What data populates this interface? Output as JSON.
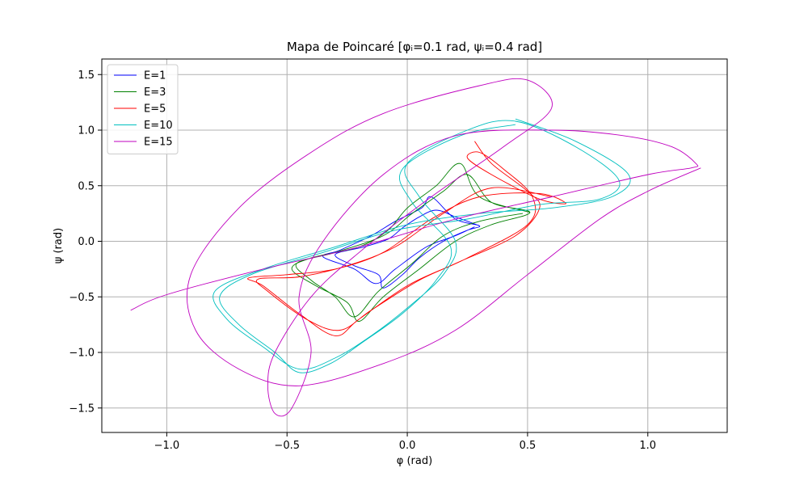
{
  "chart_data": {
    "type": "line",
    "title": "Mapa de Poincaré [φᵢ=0.1 rad, ψᵢ=0.4 rad]",
    "xlabel": "φ (rad)",
    "ylabel": "ψ (rad)",
    "xlim": [
      -1.27,
      1.33
    ],
    "ylim": [
      -1.72,
      1.64
    ],
    "xticks": [
      -1.0,
      -0.5,
      0.0,
      0.5,
      1.0
    ],
    "xtick_labels": [
      "−1.0",
      "−0.5",
      "0.0",
      "0.5",
      "1.0"
    ],
    "yticks": [
      -1.5,
      -1.0,
      -0.5,
      0.0,
      0.5,
      1.0,
      1.5
    ],
    "ytick_labels": [
      "−1.5",
      "−1.0",
      "−0.5",
      "0.0",
      "0.5",
      "1.0",
      "1.5"
    ],
    "grid": true,
    "legend_position": "top-left",
    "series": [
      {
        "name": "E=1",
        "color": "#0000ff",
        "points": [
          [
            0.3,
            0.14
          ],
          [
            0.2,
            0.22
          ],
          [
            0.12,
            0.28
          ],
          [
            0.05,
            0.22
          ],
          [
            -0.02,
            0.12
          ],
          [
            -0.08,
            0.02
          ],
          [
            -0.18,
            -0.05
          ],
          [
            -0.3,
            -0.12
          ],
          [
            -0.22,
            -0.22
          ],
          [
            -0.12,
            -0.3
          ],
          [
            -0.1,
            -0.42
          ],
          [
            -0.02,
            -0.3
          ],
          [
            0.05,
            -0.15
          ],
          [
            0.15,
            0.0
          ],
          [
            0.25,
            0.1
          ],
          [
            0.3,
            0.14
          ],
          [
            0.2,
            0.2
          ],
          [
            0.1,
            0.4
          ],
          [
            0.06,
            0.3
          ],
          [
            -0.05,
            0.18
          ],
          [
            -0.15,
            0.05
          ],
          [
            -0.28,
            -0.08
          ],
          [
            -0.35,
            -0.14
          ],
          [
            -0.22,
            -0.25
          ],
          [
            -0.13,
            -0.38
          ],
          [
            -0.05,
            -0.25
          ],
          [
            0.08,
            -0.05
          ],
          [
            0.2,
            0.05
          ],
          [
            0.28,
            0.13
          ]
        ]
      },
      {
        "name": "E=3",
        "color": "#008000",
        "points": [
          [
            0.51,
            0.26
          ],
          [
            0.3,
            0.4
          ],
          [
            0.22,
            0.7
          ],
          [
            0.12,
            0.5
          ],
          [
            0.0,
            0.3
          ],
          [
            -0.08,
            0.1
          ],
          [
            -0.2,
            -0.05
          ],
          [
            -0.4,
            -0.15
          ],
          [
            -0.48,
            -0.25
          ],
          [
            -0.38,
            -0.4
          ],
          [
            -0.25,
            -0.55
          ],
          [
            -0.2,
            -0.72
          ],
          [
            -0.1,
            -0.5
          ],
          [
            0.05,
            -0.25
          ],
          [
            0.2,
            0.0
          ],
          [
            0.35,
            0.15
          ],
          [
            0.51,
            0.26
          ],
          [
            0.35,
            0.35
          ],
          [
            0.25,
            0.6
          ],
          [
            0.15,
            0.45
          ],
          [
            0.02,
            0.25
          ],
          [
            -0.1,
            0.05
          ],
          [
            -0.3,
            -0.1
          ],
          [
            -0.46,
            -0.2
          ],
          [
            -0.4,
            -0.35
          ],
          [
            -0.3,
            -0.5
          ],
          [
            -0.22,
            -0.68
          ],
          [
            -0.12,
            -0.45
          ],
          [
            0.02,
            -0.2
          ],
          [
            0.15,
            0.05
          ],
          [
            0.3,
            0.18
          ],
          [
            0.48,
            0.25
          ]
        ]
      },
      {
        "name": "E=5",
        "color": "#ff0000",
        "points": [
          [
            0.28,
            0.9
          ],
          [
            0.35,
            0.7
          ],
          [
            0.5,
            0.45
          ],
          [
            0.55,
            0.3
          ],
          [
            0.45,
            0.05
          ],
          [
            0.2,
            -0.2
          ],
          [
            0.0,
            -0.4
          ],
          [
            -0.2,
            -0.7
          ],
          [
            -0.3,
            -0.85
          ],
          [
            -0.45,
            -0.65
          ],
          [
            -0.6,
            -0.4
          ],
          [
            -0.66,
            -0.33
          ],
          [
            -0.5,
            -0.3
          ],
          [
            -0.3,
            -0.25
          ],
          [
            -0.1,
            -0.1
          ],
          [
            0.1,
            0.2
          ],
          [
            0.3,
            0.4
          ],
          [
            0.55,
            0.43
          ],
          [
            0.66,
            0.34
          ],
          [
            0.55,
            0.38
          ],
          [
            0.35,
            0.6
          ],
          [
            0.25,
            0.75
          ],
          [
            0.3,
            0.8
          ],
          [
            0.4,
            0.65
          ],
          [
            0.52,
            0.4
          ],
          [
            0.5,
            0.15
          ],
          [
            0.25,
            -0.15
          ],
          [
            0.05,
            -0.35
          ],
          [
            -0.15,
            -0.62
          ],
          [
            -0.28,
            -0.8
          ],
          [
            -0.42,
            -0.7
          ],
          [
            -0.58,
            -0.45
          ],
          [
            -0.62,
            -0.34
          ],
          [
            -0.45,
            -0.32
          ],
          [
            -0.25,
            -0.22
          ],
          [
            -0.05,
            -0.05
          ],
          [
            0.15,
            0.25
          ],
          [
            0.35,
            0.48
          ],
          [
            0.6,
            0.4
          ]
        ]
      },
      {
        "name": "E=10",
        "color": "#00bfbf",
        "points": [
          [
            0.45,
            1.1
          ],
          [
            0.7,
            0.9
          ],
          [
            0.92,
            0.6
          ],
          [
            0.85,
            0.4
          ],
          [
            0.6,
            0.3
          ],
          [
            0.3,
            0.25
          ],
          [
            0.0,
            0.15
          ],
          [
            -0.3,
            -0.05
          ],
          [
            -0.6,
            -0.25
          ],
          [
            -0.8,
            -0.45
          ],
          [
            -0.75,
            -0.7
          ],
          [
            -0.6,
            -0.95
          ],
          [
            -0.45,
            -1.15
          ],
          [
            -0.3,
            -1.05
          ],
          [
            -0.15,
            -0.85
          ],
          [
            0.0,
            -0.6
          ],
          [
            0.15,
            -0.3
          ],
          [
            0.2,
            0.0
          ],
          [
            0.05,
            0.4
          ],
          [
            0.0,
            0.7
          ],
          [
            0.25,
            1.0
          ],
          [
            0.45,
            1.08
          ],
          [
            0.7,
            0.85
          ],
          [
            0.88,
            0.55
          ],
          [
            0.8,
            0.38
          ],
          [
            0.55,
            0.33
          ],
          [
            0.25,
            0.2
          ],
          [
            -0.05,
            0.1
          ],
          [
            -0.35,
            -0.1
          ],
          [
            -0.65,
            -0.3
          ],
          [
            -0.78,
            -0.5
          ],
          [
            -0.7,
            -0.75
          ],
          [
            -0.55,
            -1.0
          ],
          [
            -0.45,
            -1.18
          ],
          [
            -0.32,
            -1.1
          ],
          [
            -0.18,
            -0.9
          ],
          [
            -0.02,
            -0.65
          ],
          [
            0.12,
            -0.35
          ],
          [
            0.18,
            -0.05
          ],
          [
            0.02,
            0.35
          ],
          [
            -0.02,
            0.65
          ],
          [
            0.22,
            0.95
          ],
          [
            0.45,
            1.05
          ]
        ]
      },
      {
        "name": "E=15",
        "color": "#bf00bf",
        "points": [
          [
            -1.15,
            -0.62
          ],
          [
            -1.0,
            -0.48
          ],
          [
            -0.6,
            -0.25
          ],
          [
            -0.2,
            -0.05
          ],
          [
            0.2,
            0.2
          ],
          [
            0.6,
            0.4
          ],
          [
            1.0,
            0.6
          ],
          [
            1.18,
            0.66
          ],
          [
            1.2,
            0.7
          ],
          [
            1.1,
            0.85
          ],
          [
            0.9,
            0.95
          ],
          [
            0.6,
            1.0
          ],
          [
            0.2,
            0.95
          ],
          [
            -0.1,
            0.6
          ],
          [
            -0.35,
            0.0
          ],
          [
            -0.45,
            -0.5
          ],
          [
            -0.4,
            -1.0
          ],
          [
            -0.48,
            -1.5
          ],
          [
            -0.55,
            -1.55
          ],
          [
            -0.58,
            -1.3
          ],
          [
            -0.55,
            -1.0
          ],
          [
            -0.4,
            -0.5
          ],
          [
            -0.2,
            -0.1
          ],
          [
            0.1,
            0.4
          ],
          [
            0.4,
            0.85
          ],
          [
            0.6,
            1.2
          ],
          [
            0.5,
            1.45
          ],
          [
            0.3,
            1.4
          ],
          [
            -0.1,
            1.15
          ],
          [
            -0.4,
            0.8
          ],
          [
            -0.7,
            0.3
          ],
          [
            -0.9,
            -0.3
          ],
          [
            -0.88,
            -0.8
          ],
          [
            -0.7,
            -1.15
          ],
          [
            -0.45,
            -1.3
          ],
          [
            -0.1,
            -1.1
          ],
          [
            0.2,
            -0.8
          ],
          [
            0.5,
            -0.3
          ],
          [
            0.8,
            0.2
          ],
          [
            1.0,
            0.45
          ],
          [
            1.22,
            0.66
          ]
        ]
      }
    ]
  }
}
